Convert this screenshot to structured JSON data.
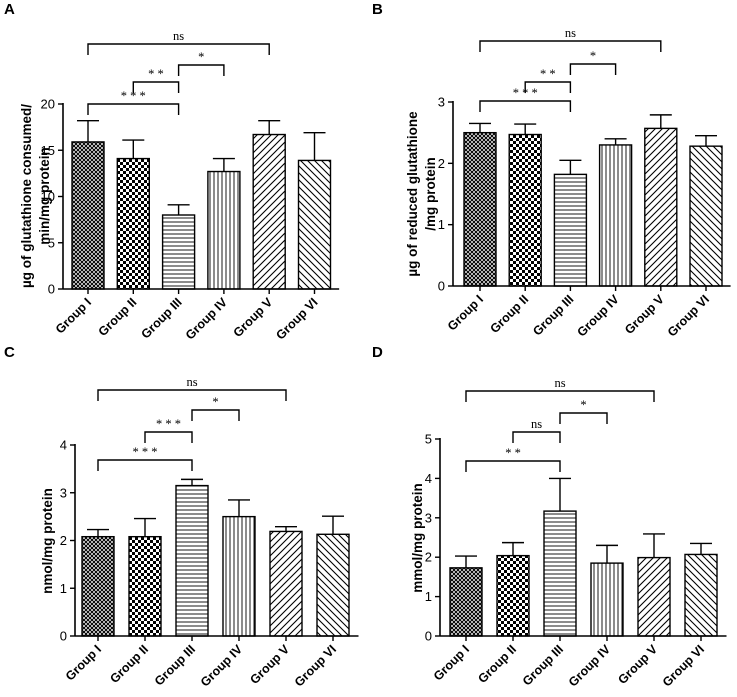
{
  "chart_data": [
    {
      "panel": "A",
      "type": "bar",
      "ylabel": [
        "µg of glutathione consumed/",
        "min/mg protein"
      ],
      "ylim": [
        0,
        20
      ],
      "yticks": [
        0,
        5,
        10,
        15,
        20
      ],
      "categories": [
        "Group I",
        "Group II",
        "Group III",
        "Group IV",
        "Group V",
        "Group VI"
      ],
      "values": [
        15.9,
        14.1,
        8.0,
        12.7,
        16.7,
        13.9
      ],
      "errors": [
        2.3,
        2.0,
        1.1,
        1.4,
        1.5,
        3.0
      ],
      "patterns": [
        "crosshatch",
        "checker",
        "horizontal",
        "vertical",
        "diag-right",
        "diag-left"
      ],
      "significance": [
        {
          "from": 0,
          "to": 4,
          "label": "ns"
        },
        {
          "from": 1,
          "to": 2,
          "label": "* *"
        },
        {
          "from": 2,
          "to": 3,
          "label": "*"
        },
        {
          "from": 0,
          "to": 2,
          "label": "* * *"
        }
      ]
    },
    {
      "panel": "B",
      "type": "bar",
      "ylabel": [
        "µg of reduced glutathione",
        "/mg protein"
      ],
      "ylim": [
        0,
        3
      ],
      "yticks": [
        0,
        1,
        2,
        3
      ],
      "categories": [
        "Group I",
        "Group II",
        "Group III",
        "Group IV",
        "Group V",
        "Group VI"
      ],
      "values": [
        2.5,
        2.47,
        1.82,
        2.3,
        2.57,
        2.28
      ],
      "errors": [
        0.15,
        0.17,
        0.23,
        0.1,
        0.22,
        0.17
      ],
      "patterns": [
        "crosshatch",
        "checker",
        "horizontal",
        "vertical",
        "diag-right",
        "diag-left"
      ],
      "significance": [
        {
          "from": 0,
          "to": 4,
          "label": "ns"
        },
        {
          "from": 1,
          "to": 2,
          "label": "* *"
        },
        {
          "from": 2,
          "to": 3,
          "label": "*"
        },
        {
          "from": 0,
          "to": 2,
          "label": "* * *"
        }
      ]
    },
    {
      "panel": "C",
      "type": "bar",
      "ylabel": [
        "nmol/mg protein"
      ],
      "ylim": [
        0,
        4
      ],
      "yticks": [
        0,
        1,
        2,
        3,
        4
      ],
      "categories": [
        "Group I",
        "Group II",
        "Group III",
        "Group IV",
        "Group V",
        "Group VI"
      ],
      "values": [
        2.08,
        2.08,
        3.15,
        2.5,
        2.19,
        2.13
      ],
      "errors": [
        0.15,
        0.38,
        0.13,
        0.35,
        0.1,
        0.38
      ],
      "patterns": [
        "crosshatch",
        "checker",
        "horizontal",
        "vertical",
        "diag-right",
        "diag-left"
      ],
      "significance": [
        {
          "from": 0,
          "to": 4,
          "label": "ns"
        },
        {
          "from": 1,
          "to": 2,
          "label": "* * *"
        },
        {
          "from": 2,
          "to": 3,
          "label": "*"
        },
        {
          "from": 0,
          "to": 2,
          "label": "* * *"
        }
      ]
    },
    {
      "panel": "D",
      "type": "bar",
      "ylabel": [
        "mmol/mg protein"
      ],
      "ylim": [
        0,
        5
      ],
      "yticks": [
        0,
        1,
        2,
        3,
        4,
        5
      ],
      "categories": [
        "Group I",
        "Group II",
        "Group III",
        "Group IV",
        "Group V",
        "Group VI"
      ],
      "values": [
        1.73,
        2.04,
        3.17,
        1.85,
        1.99,
        2.07
      ],
      "errors": [
        0.3,
        0.33,
        0.83,
        0.45,
        0.6,
        0.28
      ],
      "patterns": [
        "crosshatch",
        "checker",
        "horizontal",
        "vertical",
        "diag-right",
        "diag-left"
      ],
      "significance": [
        {
          "from": 0,
          "to": 4,
          "label": "ns"
        },
        {
          "from": 1,
          "to": 2,
          "label": "ns"
        },
        {
          "from": 2,
          "to": 3,
          "label": "*"
        },
        {
          "from": 0,
          "to": 2,
          "label": "* *"
        }
      ]
    }
  ]
}
